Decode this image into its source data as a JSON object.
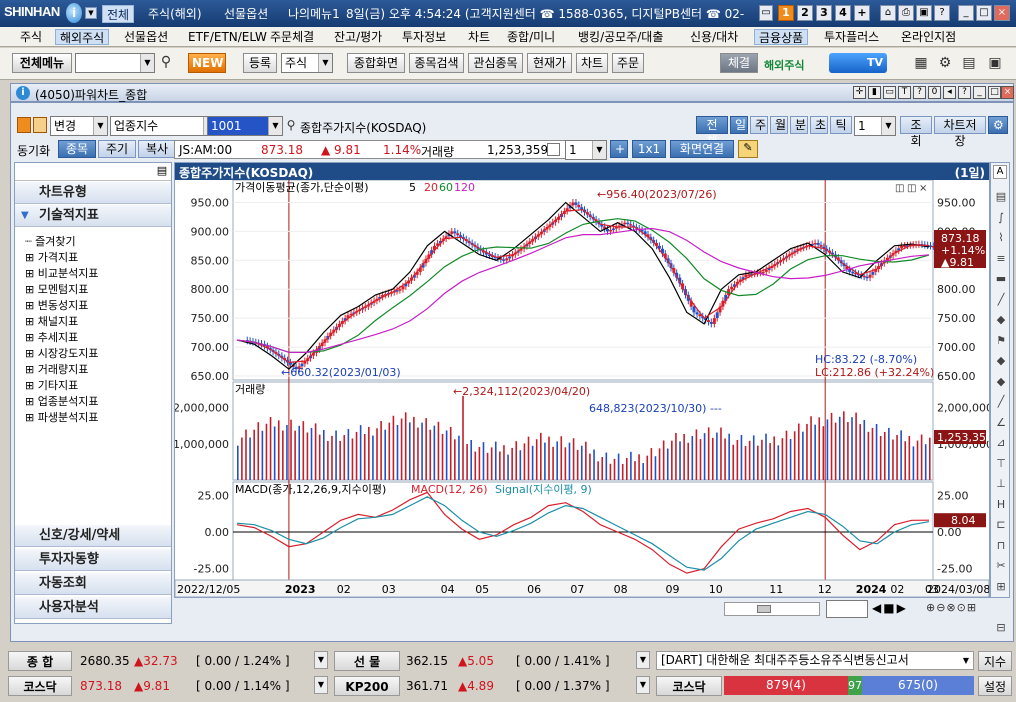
{
  "app": {
    "logo": "SHINHAN",
    "top_tabs": [
      "전체",
      "주식(해외)",
      "선물옵션",
      "나의메뉴1"
    ],
    "top_info": "8일(금) 오후 4:54:24 (고객지원센터 ☎ 1588-0365, 디지털PB센터 ☎ 02-",
    "screen_numbers": [
      "1",
      "2",
      "3",
      "4",
      "+"
    ]
  },
  "menubar": [
    "주식",
    "해외주식",
    "선물옵션",
    "ETF/ETN/ELW",
    "주문체결",
    "잔고/평가",
    "투자정보",
    "차트",
    "종합/미니",
    "뱅킹/공모주/대출",
    "신용/대차",
    "금융상품",
    "투자플러스",
    "온라인지점"
  ],
  "toolbar": {
    "all_menu": "전체메뉴",
    "new_badge": "NEW",
    "register": "등록",
    "stock_select": "주식",
    "buttons": [
      "종합화면",
      "종목검색",
      "관심종목",
      "현재가",
      "차트",
      "주문"
    ],
    "exec": "체결",
    "overseas": "해외주식",
    "tv": "TV"
  },
  "window": {
    "title": "(4050)파워차트_종합",
    "change_btn": "변경",
    "category": "업종지수",
    "code": "1001",
    "name": "종합주가지수(KOSDAQ)",
    "period_buttons": [
      "전체",
      "일",
      "주",
      "월",
      "분",
      "초",
      "틱"
    ],
    "period_count": "1",
    "query_btn": "조회",
    "save_btn": "차트저장",
    "sync_label": "동기화",
    "sync_buttons": [
      "종목",
      "주기",
      "복사"
    ],
    "ticker_code": "JS:AM:00",
    "price": "873.18",
    "change": "▲ 9.81",
    "change_pct": "1.14%",
    "volume_label": "거래량",
    "volume": "1,253,359",
    "count_select": "1",
    "plus_btn": "+",
    "ratio_btn": "1x1",
    "link_btn": "화면연결"
  },
  "left_panel": {
    "headers": [
      "차트유형",
      "기술적지표"
    ],
    "tree": [
      "즐겨찾기",
      "가격지표",
      "비교분석지표",
      "모멘텀지표",
      "변동성지표",
      "채널지표",
      "추세지표",
      "시장강도지표",
      "거래량지표",
      "기타지표",
      "업종분석지표",
      "파생분석지표"
    ],
    "bottom_headers": [
      "신호/강세/약세",
      "투자자동향",
      "자동조회",
      "사용자분석"
    ]
  },
  "chart_data": {
    "type": "line",
    "title": "종합주가지수(KOSDAQ)",
    "period_badge": "(1일)",
    "price_panel": {
      "legend": "가격이동평균(종가,단순이평)",
      "ma_periods": [
        "5",
        "20",
        "60",
        "120"
      ],
      "y_ticks": [
        "950.00",
        "900.00",
        "850.00",
        "800.00",
        "750.00",
        "700.00",
        "650.00"
      ],
      "ylim": [
        650,
        975
      ],
      "high_annotation": "956.40(2023/07/26)",
      "low_annotation": "660.32(2023/01/03)",
      "hc": "HC:83.22 (-8.70%)",
      "lc": "LC:212.86 (+32.24%)",
      "last_price": "873.18",
      "last_pct": "+1.14%",
      "last_chg": "▲9.81",
      "close": [
        712,
        705,
        685,
        662,
        690,
        725,
        755,
        770,
        790,
        800,
        830,
        875,
        900,
        880,
        860,
        850,
        870,
        895,
        920,
        950,
        925,
        900,
        915,
        900,
        870,
        820,
        760,
        740,
        800,
        825,
        830,
        850,
        870,
        880,
        860,
        830,
        820,
        850,
        875,
        878,
        873.18
      ]
    },
    "volume_panel": {
      "legend": "거래량",
      "y_ticks": [
        "2,000,000",
        "1,000,000"
      ],
      "max_annotation": "2,324,112(2023/04/20)",
      "oct_annotation": "648,823(2023/10/30)",
      "last_volume": "1,253,359"
    },
    "macd_panel": {
      "legend": "MACD(종가,12,26,9,지수이평)",
      "macd_label": "MACD(12, 26)",
      "signal_label": "Signal(지수이평, 9)",
      "y_ticks": [
        "25.00",
        "0.00",
        "-25.00"
      ],
      "ylim": [
        -30,
        30
      ],
      "last_value": "8.04",
      "macd": [
        5,
        3,
        -3,
        -10,
        -8,
        0,
        8,
        12,
        10,
        15,
        22,
        27,
        12,
        2,
        -5,
        -2,
        5,
        10,
        18,
        20,
        14,
        5,
        0,
        -5,
        -12,
        -22,
        -28,
        -25,
        -10,
        2,
        6,
        9,
        14,
        16,
        10,
        -2,
        -12,
        -6,
        5,
        8,
        8.04
      ],
      "signal": [
        6,
        5,
        1,
        -5,
        -8,
        -4,
        3,
        9,
        10,
        12,
        18,
        24,
        18,
        8,
        0,
        -3,
        1,
        6,
        13,
        18,
        16,
        10,
        4,
        -2,
        -8,
        -16,
        -24,
        -26,
        -18,
        -6,
        2,
        6,
        10,
        14,
        12,
        4,
        -6,
        -8,
        0,
        5,
        7
      ]
    },
    "x_ticks": [
      "2022/12/05",
      "2023",
      "02",
      "03",
      "04",
      "05",
      "06",
      "07",
      "08",
      "09",
      "10",
      "11",
      "12",
      "2024",
      "02",
      "03",
      "2024/03/08"
    ],
    "scroll_count": "310"
  },
  "market_bar": {
    "kospi_label": "종 합",
    "kospi": "2680.35",
    "kospi_chg": "▲32.73",
    "kospi_rate": "[ 0.00 / 1.24% ]",
    "kosdaq_label": "코스닥",
    "kosdaq": "873.18",
    "kosdaq_chg": "▲9.81",
    "kosdaq_rate": "[ 0.00 / 1.14% ]",
    "futures_label": "선 물",
    "futures": "362.15",
    "futures_chg": "▲5.05",
    "futures_rate": "[ 0.00 / 1.41% ]",
    "kp200_label": "KP200",
    "kp200": "361.71",
    "kp200_chg": "▲4.89",
    "kp200_rate": "[ 0.00 / 1.37% ]",
    "news": "[DART] 대한해운 최대주주등소유주식변동신고서",
    "news_btn": "지수",
    "breadth_label": "코스닥",
    "breadth_up": "879(4)",
    "breadth_flat": "97",
    "breadth_down": "675(0)",
    "settings_btn": "설정"
  }
}
